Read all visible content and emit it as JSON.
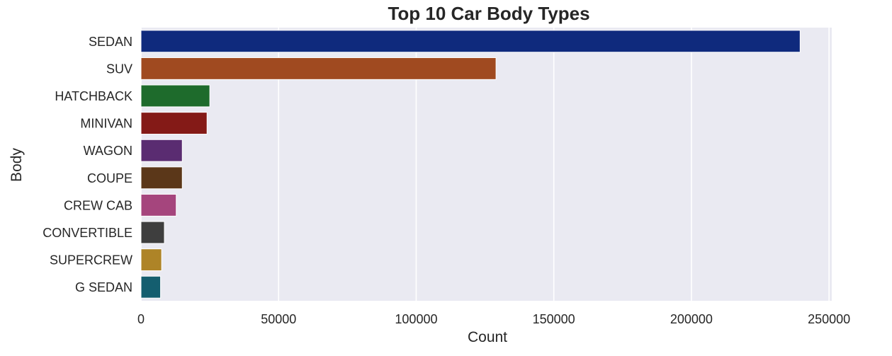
{
  "chart_data": {
    "type": "bar",
    "orientation": "horizontal",
    "title": "Top 10 Car Body Types",
    "xlabel": "Count",
    "ylabel": "Body",
    "xlim": [
      0,
      251000
    ],
    "xticks": [
      0,
      50000,
      100000,
      150000,
      200000,
      250000
    ],
    "grid": "vertical",
    "background": "#EAEAF2",
    "grid_color": "#FFFFFF",
    "categories": [
      "SEDAN",
      "SUV",
      "HATCHBACK",
      "MINIVAN",
      "WAGON",
      "COUPE",
      "CREW CAB",
      "CONVERTIBLE",
      "SUPERCREW",
      "G SEDAN"
    ],
    "values": [
      239500,
      129000,
      25000,
      24000,
      15000,
      15000,
      12800,
      8500,
      7500,
      7100
    ],
    "colors": [
      "#0F2A7D",
      "#A04A20",
      "#1E6B2C",
      "#841A17",
      "#5A2C71",
      "#5B3719",
      "#A5457D",
      "#3E3E3E",
      "#AE8427",
      "#145E6F"
    ]
  }
}
